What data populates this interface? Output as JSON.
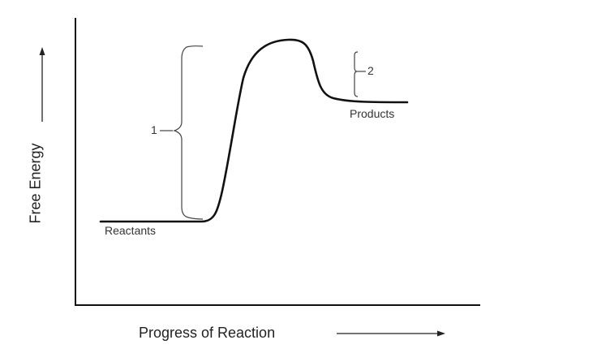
{
  "diagram": {
    "xlabel": "Progress of Reaction",
    "ylabel": "Free Energy",
    "labels": {
      "reactants": "Reactants",
      "products": "Products",
      "bracket1": "1",
      "bracket2": "2"
    }
  }
}
